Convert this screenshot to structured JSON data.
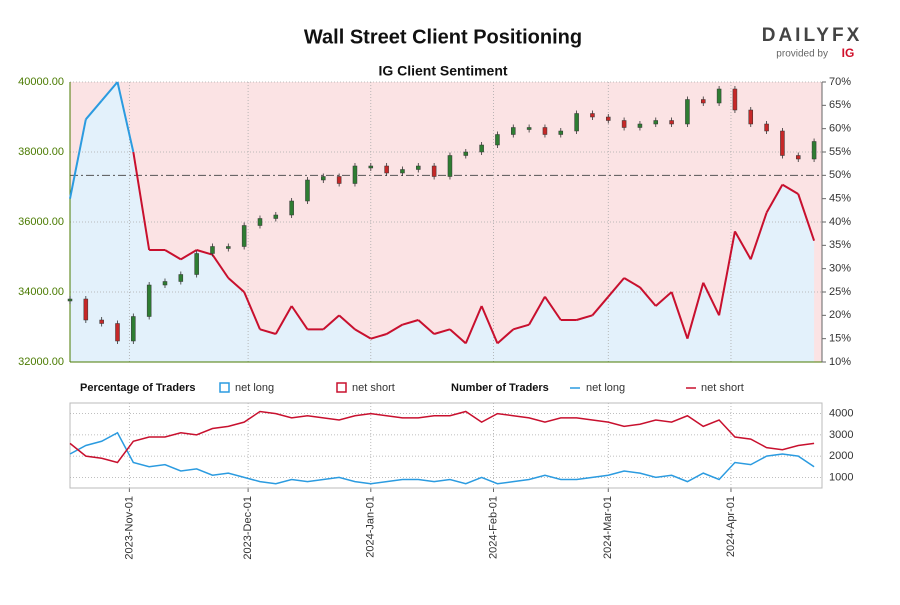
{
  "chart_data": {
    "type": "sentiment",
    "title": "Wall Street Client Positioning",
    "subtitle": "IG Client Sentiment",
    "logo": {
      "brand": "DAILYFX",
      "provided": "provided by",
      "provider": "IG"
    },
    "x": [
      "2023-10-17",
      "2023-10-21",
      "2023-10-25",
      "2023-10-29",
      "2023-11-02",
      "2023-11-06",
      "2023-11-10",
      "2023-11-14",
      "2023-11-18",
      "2023-11-22",
      "2023-11-26",
      "2023-11-30",
      "2023-12-04",
      "2023-12-08",
      "2023-12-12",
      "2023-12-16",
      "2023-12-20",
      "2023-12-24",
      "2023-12-28",
      "2024-01-01",
      "2024-01-05",
      "2024-01-09",
      "2024-01-13",
      "2024-01-17",
      "2024-01-21",
      "2024-01-25",
      "2024-01-29",
      "2024-02-02",
      "2024-02-06",
      "2024-02-10",
      "2024-02-14",
      "2024-02-18",
      "2024-02-22",
      "2024-02-26",
      "2024-03-01",
      "2024-03-05",
      "2024-03-09",
      "2024-03-13",
      "2024-03-17",
      "2024-03-21",
      "2024-03-25",
      "2024-03-29",
      "2024-04-02",
      "2024-04-06",
      "2024-04-10",
      "2024-04-14",
      "2024-04-18",
      "2024-04-22"
    ],
    "xlim": [
      "2023-10-17",
      "2024-04-24"
    ],
    "xticks": [
      {
        "value": "2023-11-01",
        "label": "2023-Nov-01"
      },
      {
        "value": "2023-12-01",
        "label": "2023-Dec-01"
      },
      {
        "value": "2024-01-01",
        "label": "2024-Jan-01"
      },
      {
        "value": "2024-02-01",
        "label": "2024-Feb-01"
      },
      {
        "value": "2024-03-01",
        "label": "2024-Mar-01"
      },
      {
        "value": "2024-04-01",
        "label": "2024-Apr-01"
      }
    ],
    "price": {
      "up_color": "#2e7d32",
      "down_color": "#c62828",
      "values": [
        33800,
        33200,
        33100,
        32600,
        33300,
        34200,
        34300,
        34500,
        35100,
        35300,
        35300,
        35900,
        36100,
        36200,
        36600,
        37200,
        37300,
        37100,
        37600,
        37600,
        37400,
        37500,
        37600,
        37300,
        37900,
        38000,
        38200,
        38500,
        38700,
        38700,
        38500,
        38600,
        39100,
        39000,
        38900,
        38700,
        38800,
        38900,
        38800,
        39500,
        39400,
        39800,
        39200,
        38800,
        38600,
        37900,
        37800,
        38300
      ]
    },
    "ylim": [
      32000,
      40000
    ],
    "yticks": [
      {
        "value": 32000,
        "label": "32000.00"
      },
      {
        "value": 34000,
        "label": "34000.00"
      },
      {
        "value": 36000,
        "label": "36000.00"
      },
      {
        "value": 38000,
        "label": "38000.00"
      },
      {
        "value": 40000,
        "label": "40000.00"
      }
    ],
    "sentiment": {
      "long_color": "#2b9be0",
      "short_color": "#c8102e",
      "values": [
        45,
        62,
        66,
        70,
        55,
        34,
        34,
        32,
        34,
        33,
        28,
        25,
        17,
        16,
        22,
        17,
        17,
        20,
        17,
        15,
        16,
        18,
        19,
        16,
        17,
        14,
        22,
        14,
        17,
        18,
        24,
        19,
        19,
        20,
        24,
        28,
        26,
        22,
        25,
        15,
        27,
        20,
        38,
        32,
        42,
        48,
        46,
        36
      ]
    },
    "y2lim": [
      10,
      70
    ],
    "y2ticks": [
      {
        "value": 10,
        "label": "10%"
      },
      {
        "value": 15,
        "label": "15%"
      },
      {
        "value": 20,
        "label": "20%"
      },
      {
        "value": 25,
        "label": "25%"
      },
      {
        "value": 30,
        "label": "30%"
      },
      {
        "value": 35,
        "label": "35%"
      },
      {
        "value": 40,
        "label": "40%"
      },
      {
        "value": 45,
        "label": "45%"
      },
      {
        "value": 50,
        "label": "50%"
      },
      {
        "value": 55,
        "label": "55%"
      },
      {
        "value": 60,
        "label": "60%"
      },
      {
        "value": 65,
        "label": "65%"
      },
      {
        "value": 70,
        "label": "70%"
      }
    ],
    "legend": {
      "pct_title": "Percentage of Traders",
      "num_title": "Number of Traders",
      "long": "net long",
      "short": "net short"
    },
    "traders": {
      "series": [
        {
          "name": "net long",
          "color": "#2b9be0",
          "values": [
            2100,
            2500,
            2700,
            3100,
            1700,
            1500,
            1600,
            1300,
            1400,
            1100,
            1200,
            1000,
            800,
            700,
            900,
            800,
            900,
            1000,
            800,
            700,
            800,
            900,
            900,
            800,
            900,
            700,
            1000,
            700,
            800,
            900,
            1100,
            900,
            900,
            1000,
            1100,
            1300,
            1200,
            1000,
            1100,
            800,
            1200,
            900,
            1700,
            1600,
            2000,
            2100,
            2000,
            1500
          ]
        },
        {
          "name": "net short",
          "color": "#c8102e",
          "values": [
            2600,
            2000,
            1900,
            1700,
            2700,
            2900,
            2900,
            3100,
            3000,
            3300,
            3400,
            3600,
            4100,
            4000,
            3800,
            3900,
            3800,
            3700,
            3900,
            4000,
            3900,
            3800,
            3800,
            3900,
            3900,
            4100,
            3600,
            4000,
            3900,
            3800,
            3600,
            3800,
            3800,
            3700,
            3600,
            3400,
            3500,
            3700,
            3600,
            3900,
            3400,
            3700,
            2900,
            2800,
            2400,
            2300,
            2500,
            2600
          ]
        }
      ],
      "ylim": [
        500,
        4500
      ],
      "yticks": [
        1000,
        2000,
        3000,
        4000
      ]
    },
    "grid": true
  }
}
